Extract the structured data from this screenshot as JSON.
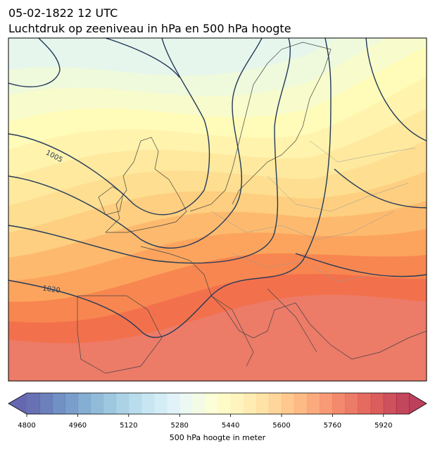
{
  "header": {
    "title_line1": "05-02-1822 12 UTC",
    "title_line2": "Luchtdruk op zeeniveau in hPa en 500 hPa hoogte"
  },
  "map": {
    "contour_labels": [
      1005,
      1020
    ]
  },
  "colorbar": {
    "label": "500 hPa hoogte in meter",
    "range": [
      4800,
      6000
    ],
    "step": 40,
    "ticks": [
      4800,
      4960,
      5120,
      5280,
      5440,
      5600,
      5760,
      5920
    ],
    "colormap": "RdYlBu_r",
    "extend": "both"
  }
}
